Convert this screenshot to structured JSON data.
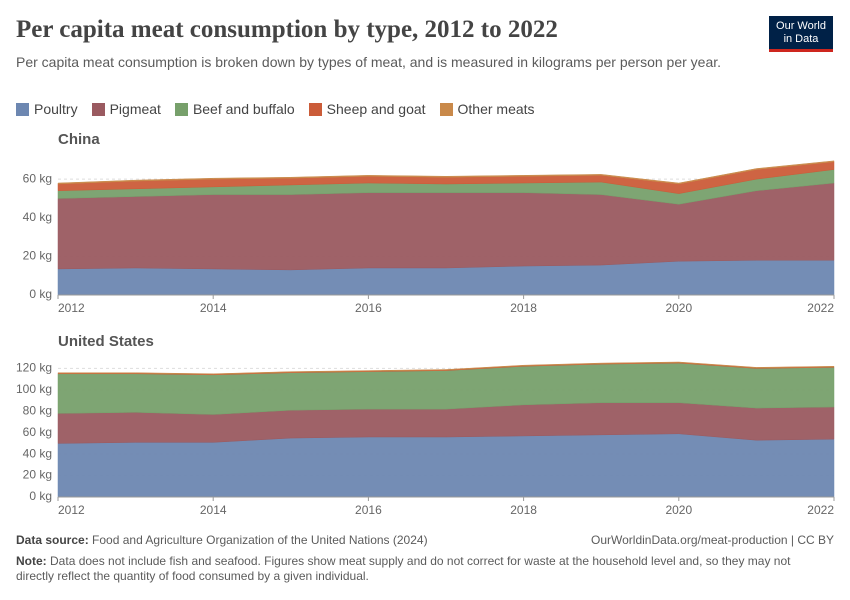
{
  "chart_data": {
    "type": "area",
    "stacked": true,
    "title": "Per capita meat consumption by type, 2012 to 2022",
    "subtitle": "Per capita meat consumption is broken down by types of meat, and is measured in kilograms per person per year.",
    "logo": [
      "Our World",
      "in Data"
    ],
    "x": [
      2012,
      2013,
      2014,
      2015,
      2016,
      2017,
      2018,
      2019,
      2020,
      2021,
      2022
    ],
    "xlim": [
      2012,
      2022
    ],
    "xticks": [
      2012,
      2014,
      2016,
      2018,
      2020,
      2022
    ],
    "grid": true,
    "legend": [
      {
        "name": "Poultry",
        "color": "#6d87b1"
      },
      {
        "name": "Pigmeat",
        "color": "#9a5a60"
      },
      {
        "name": "Beef and buffalo",
        "color": "#77a06b"
      },
      {
        "name": "Sheep and goat",
        "color": "#cb5c39"
      },
      {
        "name": "Other meats",
        "color": "#c9894a"
      }
    ],
    "panels": [
      {
        "title": "China",
        "ylim": [
          0,
          72
        ],
        "yticks": [
          {
            "value": 0,
            "label": "0 kg"
          },
          {
            "value": 20,
            "label": "20 kg"
          },
          {
            "value": 40,
            "label": "40 kg"
          },
          {
            "value": 60,
            "label": "60 kg"
          }
        ],
        "series": [
          {
            "values": [
              13.5,
              14,
              13.5,
              13,
              14,
              14,
              15,
              15.5,
              17.5,
              18,
              18
            ]
          },
          {
            "values": [
              36.5,
              37,
              38.5,
              39,
              39,
              39,
              38,
              36.5,
              29.5,
              36,
              40
            ]
          },
          {
            "values": [
              4,
              4,
              4,
              5,
              5,
              4.5,
              5,
              6.5,
              5.5,
              6,
              7
            ]
          },
          {
            "values": [
              3.5,
              4,
              4,
              3.5,
              3.5,
              3.5,
              3.5,
              3.5,
              5,
              5,
              4
            ]
          },
          {
            "values": [
              0.5,
              0.5,
              0.5,
              0.5,
              0.5,
              0.5,
              0.5,
              0.5,
              0.5,
              0.5,
              0.5
            ]
          }
        ]
      },
      {
        "title": "United States",
        "ylim": [
          0,
          126
        ],
        "yticks": [
          {
            "value": 0,
            "label": "0 kg"
          },
          {
            "value": 20,
            "label": "20 kg"
          },
          {
            "value": 40,
            "label": "40 kg"
          },
          {
            "value": 60,
            "label": "60 kg"
          },
          {
            "value": 80,
            "label": "80 kg"
          },
          {
            "value": 100,
            "label": "100 kg"
          },
          {
            "value": 120,
            "label": "120 kg"
          }
        ],
        "series": [
          {
            "values": [
              50,
              51,
              51,
              55,
              56,
              56,
              57,
              58,
              59,
              53,
              54
            ]
          },
          {
            "values": [
              28,
              28,
              26,
              26,
              26,
              26,
              29,
              30,
              29,
              30,
              30
            ]
          },
          {
            "values": [
              37,
              36,
              37,
              35,
              35,
              36,
              36,
              36,
              37,
              37,
              37
            ]
          },
          {
            "values": [
              0.5,
              0.5,
              0.5,
              0.5,
              0.5,
              0.5,
              0.5,
              0.5,
              0.5,
              0.5,
              0.5
            ]
          },
          {
            "values": [
              0.5,
              0.5,
              0.5,
              0.5,
              0.5,
              0.5,
              0.5,
              0.5,
              0.5,
              0.5,
              0.5
            ]
          }
        ]
      }
    ],
    "source_label": "Data source:",
    "source": "Food and Agriculture Organization of the United Nations (2024)",
    "url": "OurWorldinData.org/meat-production | CC BY",
    "note_label": "Note:",
    "note": "Data does not include fish and seafood. Figures show meat supply and do not correct for waste at the household level and, so they may not directly reflect the quantity of food consumed by a given individual."
  }
}
